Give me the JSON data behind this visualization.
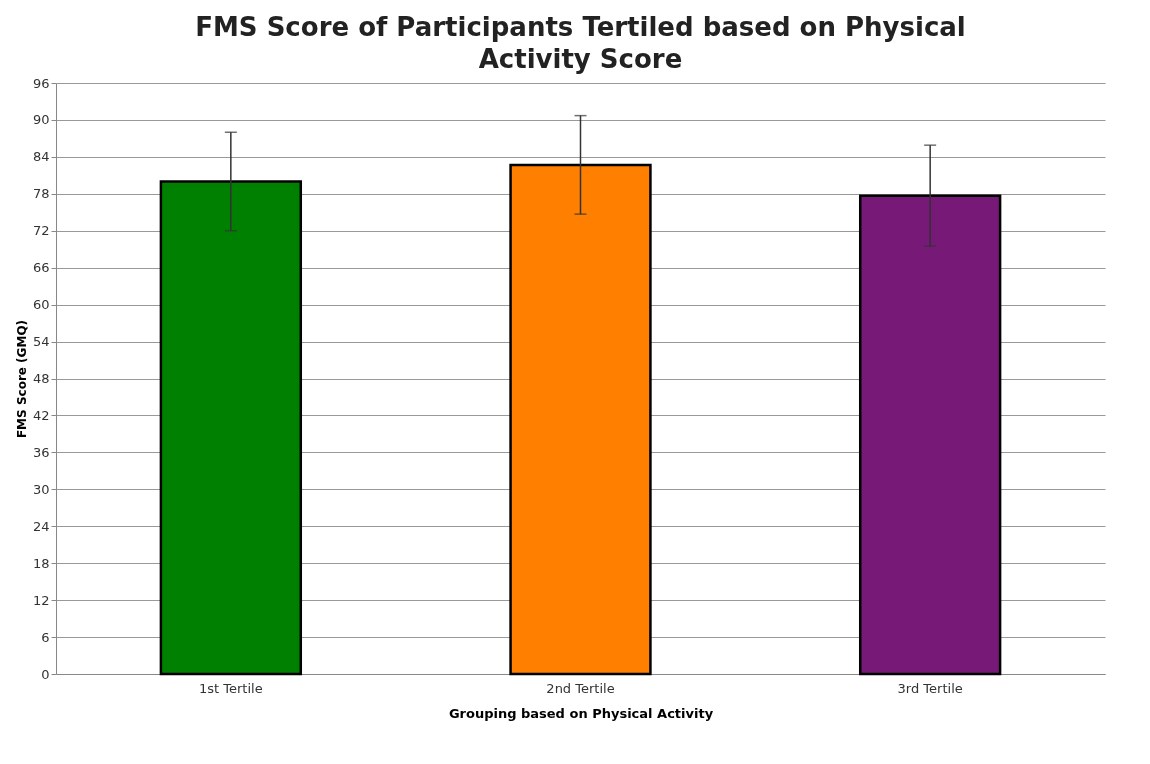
{
  "chart_data": {
    "type": "bar",
    "title": "FMS Score of Participants Tertiled based on Physical Activity Score",
    "xlabel": "Grouping based on Physical Activity",
    "ylabel": "FMS Score (GMQ)",
    "categories": [
      "1st Tertile",
      "2nd Tertile",
      "3rd Tertile"
    ],
    "values": [
      80,
      82.7,
      77.7
    ],
    "colors": [
      "#008000",
      "#ff7f00",
      "#771a77"
    ],
    "errors": [
      8,
      8,
      8.2
    ],
    "ylim": [
      0,
      96
    ],
    "yticks": [
      0,
      6,
      12,
      18,
      24,
      30,
      36,
      42,
      48,
      54,
      60,
      66,
      72,
      78,
      84,
      90,
      96
    ],
    "grid": "y"
  }
}
